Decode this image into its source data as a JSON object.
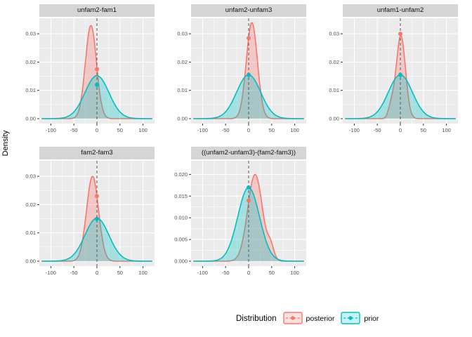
{
  "chart_data": {
    "type": "density",
    "ylabel": "Density",
    "x_range": [
      -125,
      125
    ],
    "x_ticks": [
      -100,
      -50,
      0,
      50,
      100
    ],
    "vline_x": 0,
    "legend": {
      "title": "Distribution",
      "entries": [
        {
          "label": "posterior",
          "color": "#F8766D"
        },
        {
          "label": "prior",
          "color": "#00BFC4"
        }
      ]
    },
    "panels": [
      {
        "title": "unfam2-fam1",
        "y_max": 0.0345,
        "y_ticks": [
          0,
          0.01,
          0.02,
          0.03
        ],
        "y_tick_labels": [
          "0.00",
          "0.01",
          "0.02",
          "0.03"
        ],
        "series": [
          {
            "name": "posterior",
            "color": "#F8766D",
            "components": [
              {
                "mean": -13,
                "sd": 12,
                "peak": 0.033
              }
            ],
            "point_at_zero": 0.0175
          },
          {
            "name": "prior",
            "color": "#00BFC4",
            "components": [
              {
                "mean": 0,
                "sd": 26,
                "peak": 0.0152
              }
            ],
            "point_at_zero": 0.012
          }
        ]
      },
      {
        "title": "unfam2-unfam3",
        "y_max": 0.0345,
        "y_ticks": [
          0,
          0.01,
          0.02,
          0.03
        ],
        "y_tick_labels": [
          "0.00",
          "0.01",
          "0.02",
          "0.03"
        ],
        "series": [
          {
            "name": "posterior",
            "color": "#F8766D",
            "components": [
              {
                "mean": 7,
                "sd": 12,
                "peak": 0.034
              }
            ],
            "point_at_zero": 0.0285
          },
          {
            "name": "prior",
            "color": "#00BFC4",
            "components": [
              {
                "mean": 0,
                "sd": 26,
                "peak": 0.0155
              }
            ],
            "point_at_zero": 0.0155
          }
        ]
      },
      {
        "title": "unfam1-unfam2",
        "y_max": 0.0345,
        "y_ticks": [
          0,
          0.01,
          0.02,
          0.03
        ],
        "y_tick_labels": [
          "0.00",
          "0.01",
          "0.02",
          "0.03"
        ],
        "series": [
          {
            "name": "posterior",
            "color": "#F8766D",
            "components": [
              {
                "mean": 1,
                "sd": 10,
                "peak": 0.0295
              },
              {
                "mean": -20,
                "sd": 6,
                "peak": 0.004
              }
            ],
            "point_at_zero": 0.03
          },
          {
            "name": "prior",
            "color": "#00BFC4",
            "components": [
              {
                "mean": 0,
                "sd": 26,
                "peak": 0.0155
              }
            ],
            "point_at_zero": 0.0155
          }
        ]
      },
      {
        "title": "fam2-fam3",
        "y_max": 0.0345,
        "y_ticks": [
          0,
          0.01,
          0.02,
          0.03
        ],
        "y_tick_labels": [
          "0.00",
          "0.01",
          "0.02",
          "0.03"
        ],
        "series": [
          {
            "name": "posterior",
            "color": "#F8766D",
            "components": [
              {
                "mean": -9.5,
                "sd": 13,
                "peak": 0.03
              }
            ],
            "point_at_zero": 0.023
          },
          {
            "name": "prior",
            "color": "#00BFC4",
            "components": [
              {
                "mean": 0,
                "sd": 26,
                "peak": 0.0152
              }
            ],
            "point_at_zero": 0.015
          }
        ]
      },
      {
        "title": "((unfam2-unfam3)-(fam2-fam3))",
        "y_max": 0.0225,
        "y_ticks": [
          0,
          0.005,
          0.01,
          0.015,
          0.02
        ],
        "y_tick_labels": [
          "0.000",
          "0.005",
          "0.010",
          "0.015",
          "0.020"
        ],
        "series": [
          {
            "name": "posterior",
            "color": "#F8766D",
            "components": [
              {
                "mean": 14,
                "sd": 16,
                "peak": 0.02
              },
              {
                "mean": 48,
                "sd": 7,
                "peak": 0.0028
              }
            ],
            "point_at_zero": 0.014
          },
          {
            "name": "prior",
            "color": "#00BFC4",
            "components": [
              {
                "mean": 0,
                "sd": 23.5,
                "peak": 0.017
              }
            ],
            "point_at_zero": 0.017
          }
        ]
      }
    ]
  },
  "style": {
    "panel_bg": "#EBEBEB",
    "strip_bg": "#D5D5D5",
    "grid_color": "#FFFFFF",
    "axis_text_color": "#4D4D4D",
    "tick_color": "#333333",
    "vline_color": "#595959"
  }
}
